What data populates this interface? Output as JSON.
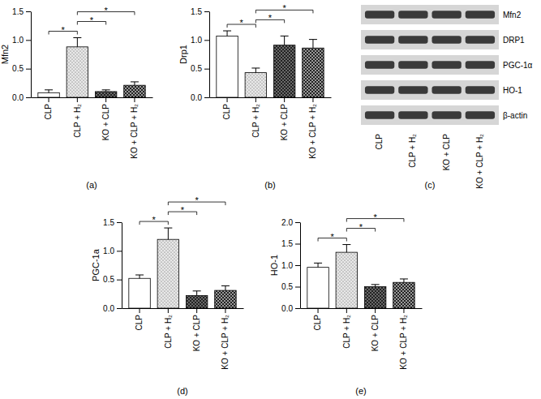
{
  "chart_data": [
    {
      "type": "bar",
      "title": "(a)",
      "y_label": "Mfn2",
      "categories": [
        "CLP",
        "CLP + H₂",
        "KO + CLP",
        "KO + CLP + H₂"
      ],
      "values": [
        0.08,
        0.88,
        0.1,
        0.21
      ],
      "errors": [
        0.05,
        0.16,
        0.03,
        0.06
      ],
      "colors": [
        "#ffffff",
        "#e8e8e8",
        "#6a6a6a",
        "#9a9a9a"
      ],
      "ylim": [
        0,
        1.5
      ],
      "yticks": [
        {
          "value": 0,
          "label": "0.0"
        },
        0.5,
        {
          "value": 1,
          "label": "1.0"
        },
        1.5
      ],
      "significance": [
        {
          "pair": [
            "CLP",
            "CLP + H₂"
          ],
          "label": "*"
        },
        {
          "pair": [
            "CLP + H₂",
            "KO + CLP"
          ],
          "label": "*"
        },
        {
          "pair": [
            "CLP + H₂",
            "KO + CLP + H₂"
          ],
          "label": "*"
        }
      ]
    },
    {
      "type": "bar",
      "title": "(b)",
      "y_label": "Drp1",
      "categories": [
        "CLP",
        "CLP + H₂",
        "KO + CLP",
        "KO + CLP + H₂"
      ],
      "values": [
        1.07,
        0.43,
        0.91,
        0.86
      ],
      "errors": [
        0.09,
        0.08,
        0.16,
        0.15
      ],
      "colors": [
        "#ffffff",
        "#e8e8e8",
        "#6a6a6a",
        "#9a9a9a"
      ],
      "ylim": [
        0,
        1.5
      ],
      "yticks": [
        {
          "value": 0,
          "label": "0.0"
        },
        0.5,
        {
          "value": 1,
          "label": "1.0"
        },
        1.5
      ],
      "significance": [
        {
          "pair": [
            "CLP",
            "CLP + H₂"
          ],
          "label": "*"
        },
        {
          "pair": [
            "CLP + H₂",
            "KO + CLP"
          ],
          "label": "*"
        },
        {
          "pair": [
            "CLP + H₂",
            "KO + CLP + H₂"
          ],
          "label": "*"
        }
      ]
    },
    {
      "type": "blot",
      "title": "(c)",
      "categories": [
        "CLP",
        "CLP + H₂",
        "KO + CLP",
        "KO + CLP + H₂"
      ],
      "rows": [
        "Mfn2",
        "DRP1",
        "PGC-1α",
        "HO-1",
        "β-actin"
      ]
    },
    {
      "type": "bar",
      "title": "(d)",
      "y_label": "PGC-1a",
      "categories": [
        "CLP",
        "CLP + H₂",
        "KO + CLP",
        "KO + CLP + H₂"
      ],
      "values": [
        0.52,
        1.2,
        0.22,
        0.31
      ],
      "errors": [
        0.06,
        0.2,
        0.08,
        0.08
      ],
      "colors": [
        "#ffffff",
        "#e8e8e8",
        "#6a6a6a",
        "#9a9a9a"
      ],
      "ylim": [
        0,
        1.5
      ],
      "yticks": [
        {
          "value": 0,
          "label": "0.0"
        },
        0.5,
        {
          "value": 1,
          "label": "1.0"
        },
        1.5
      ],
      "significance": [
        {
          "pair": [
            "CLP",
            "CLP + H₂"
          ],
          "label": "*"
        },
        {
          "pair": [
            "CLP + H₂",
            "KO + CLP"
          ],
          "label": "*"
        },
        {
          "pair": [
            "CLP + H₂",
            "KO + CLP + H₂"
          ],
          "label": "*"
        }
      ]
    },
    {
      "type": "bar",
      "title": "(e)",
      "y_label": "HO-1",
      "categories": [
        "CLP",
        "CLP + H₂",
        "KO + CLP",
        "KO + CLP + H₂"
      ],
      "values": [
        0.95,
        1.3,
        0.5,
        0.6
      ],
      "errors": [
        0.1,
        0.18,
        0.05,
        0.08
      ],
      "colors": [
        "#ffffff",
        "#e8e8e8",
        "#6a6a6a",
        "#9a9a9a"
      ],
      "ylim": [
        0,
        2
      ],
      "yticks": [
        {
          "value": 0,
          "label": "0.0"
        },
        0.5,
        {
          "value": 1,
          "label": "1.0"
        },
        1.5,
        {
          "value": 2,
          "label": "2.0"
        }
      ],
      "significance": [
        {
          "pair": [
            "CLP",
            "CLP + H₂"
          ],
          "label": "*"
        },
        {
          "pair": [
            "CLP + H₂",
            "KO + CLP"
          ],
          "label": "*"
        },
        {
          "pair": [
            "CLP + H₂",
            "KO + CLP + H₂"
          ],
          "label": "*"
        }
      ]
    }
  ]
}
